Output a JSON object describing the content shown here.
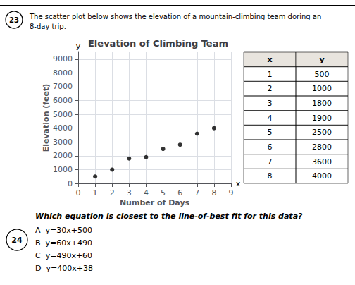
{
  "chart_data": {
    "type": "scatter",
    "title": "Elevation of Climbing Team",
    "xlabel": "Number of Days",
    "ylabel": "Elevation (feet)",
    "x": [
      1,
      2,
      3,
      4,
      5,
      6,
      7,
      8
    ],
    "values": [
      500,
      1000,
      1800,
      1900,
      2500,
      2800,
      3600,
      4000
    ],
    "color": "black",
    "xlim": [
      0,
      9
    ],
    "ylim": [
      0,
      9500
    ],
    "xticks": [
      0,
      1,
      2,
      3,
      4,
      5,
      6,
      7,
      8,
      9
    ],
    "yticks": [
      0,
      1000,
      2000,
      3000,
      4000,
      5000,
      6000,
      7000,
      8000,
      9000
    ],
    "grid": true,
    "annotations": [
      "23",
      "The scatter plot below shows the elevation of a mountain-climbing team doring an\n8-day trip.",
      "x",
      "y",
      "x",
      "y",
      "24",
      "Which equation is closest to the line-of-best fit for this data?",
      "A  y=30x+500",
      "B  y=60x+490",
      "C  y=490x+60",
      "D  y=400x+38"
    ]
  }
}
